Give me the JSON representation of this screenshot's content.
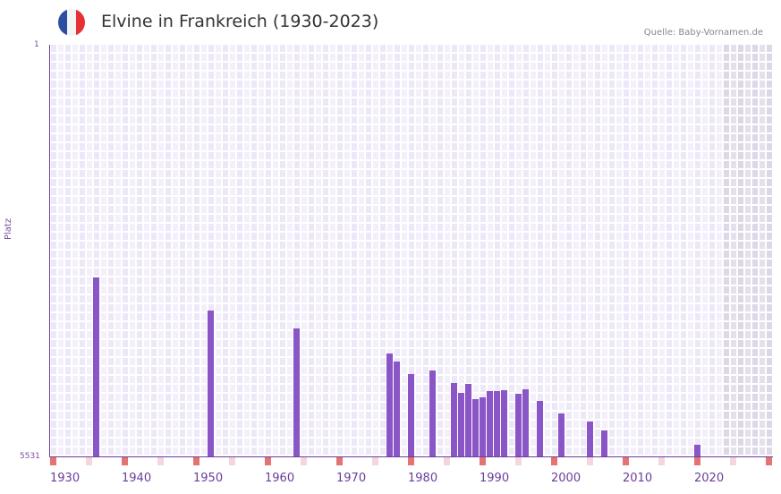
{
  "header": {
    "title": "Elvine in Frankreich (1930-2023)",
    "source": "Quelle: Baby-Vornamen.de",
    "flag_colors": [
      "#2b4ea2",
      "#f4f4f6",
      "#e63036"
    ]
  },
  "colors": {
    "bar": "#8a55c6",
    "axis": "#6a3d9a",
    "grid_a": "#ede8f8",
    "grid_b": "#f3f0fb",
    "future_a": "#ddd7e8",
    "future_b": "#e4e0ec",
    "decade_marker": "#e57373",
    "half_decade_marker": "#f5d5de"
  },
  "chart_data": {
    "type": "bar",
    "title": "Elvine in Frankreich (1930-2023)",
    "xlabel": "",
    "ylabel": "Platz",
    "y_inverted": true,
    "ylim": [
      1,
      5531
    ],
    "y_ticks": [
      "1",
      "5531"
    ],
    "x_range": [
      1930,
      2030
    ],
    "x_ticks": [
      "1930",
      "1940",
      "1950",
      "1960",
      "1970",
      "1980",
      "1990",
      "2000",
      "2010",
      "2020"
    ],
    "future_shaded_from": 2024,
    "grid": true,
    "categories": [
      1936,
      1952,
      1964,
      1977,
      1978,
      1980,
      1983,
      1986,
      1987,
      1988,
      1989,
      1990,
      1991,
      1992,
      1993,
      1995,
      1996,
      1998,
      2001,
      2005,
      2007,
      2020
    ],
    "values": [
      3127,
      3572,
      3812,
      4148,
      4256,
      4425,
      4376,
      4545,
      4677,
      4557,
      4761,
      4737,
      4653,
      4653,
      4641,
      4689,
      4629,
      4785,
      4953,
      5061,
      5181,
      5373
    ]
  },
  "axis": {
    "y_top": "1",
    "y_bottom": "5531",
    "y_label": "Platz"
  }
}
